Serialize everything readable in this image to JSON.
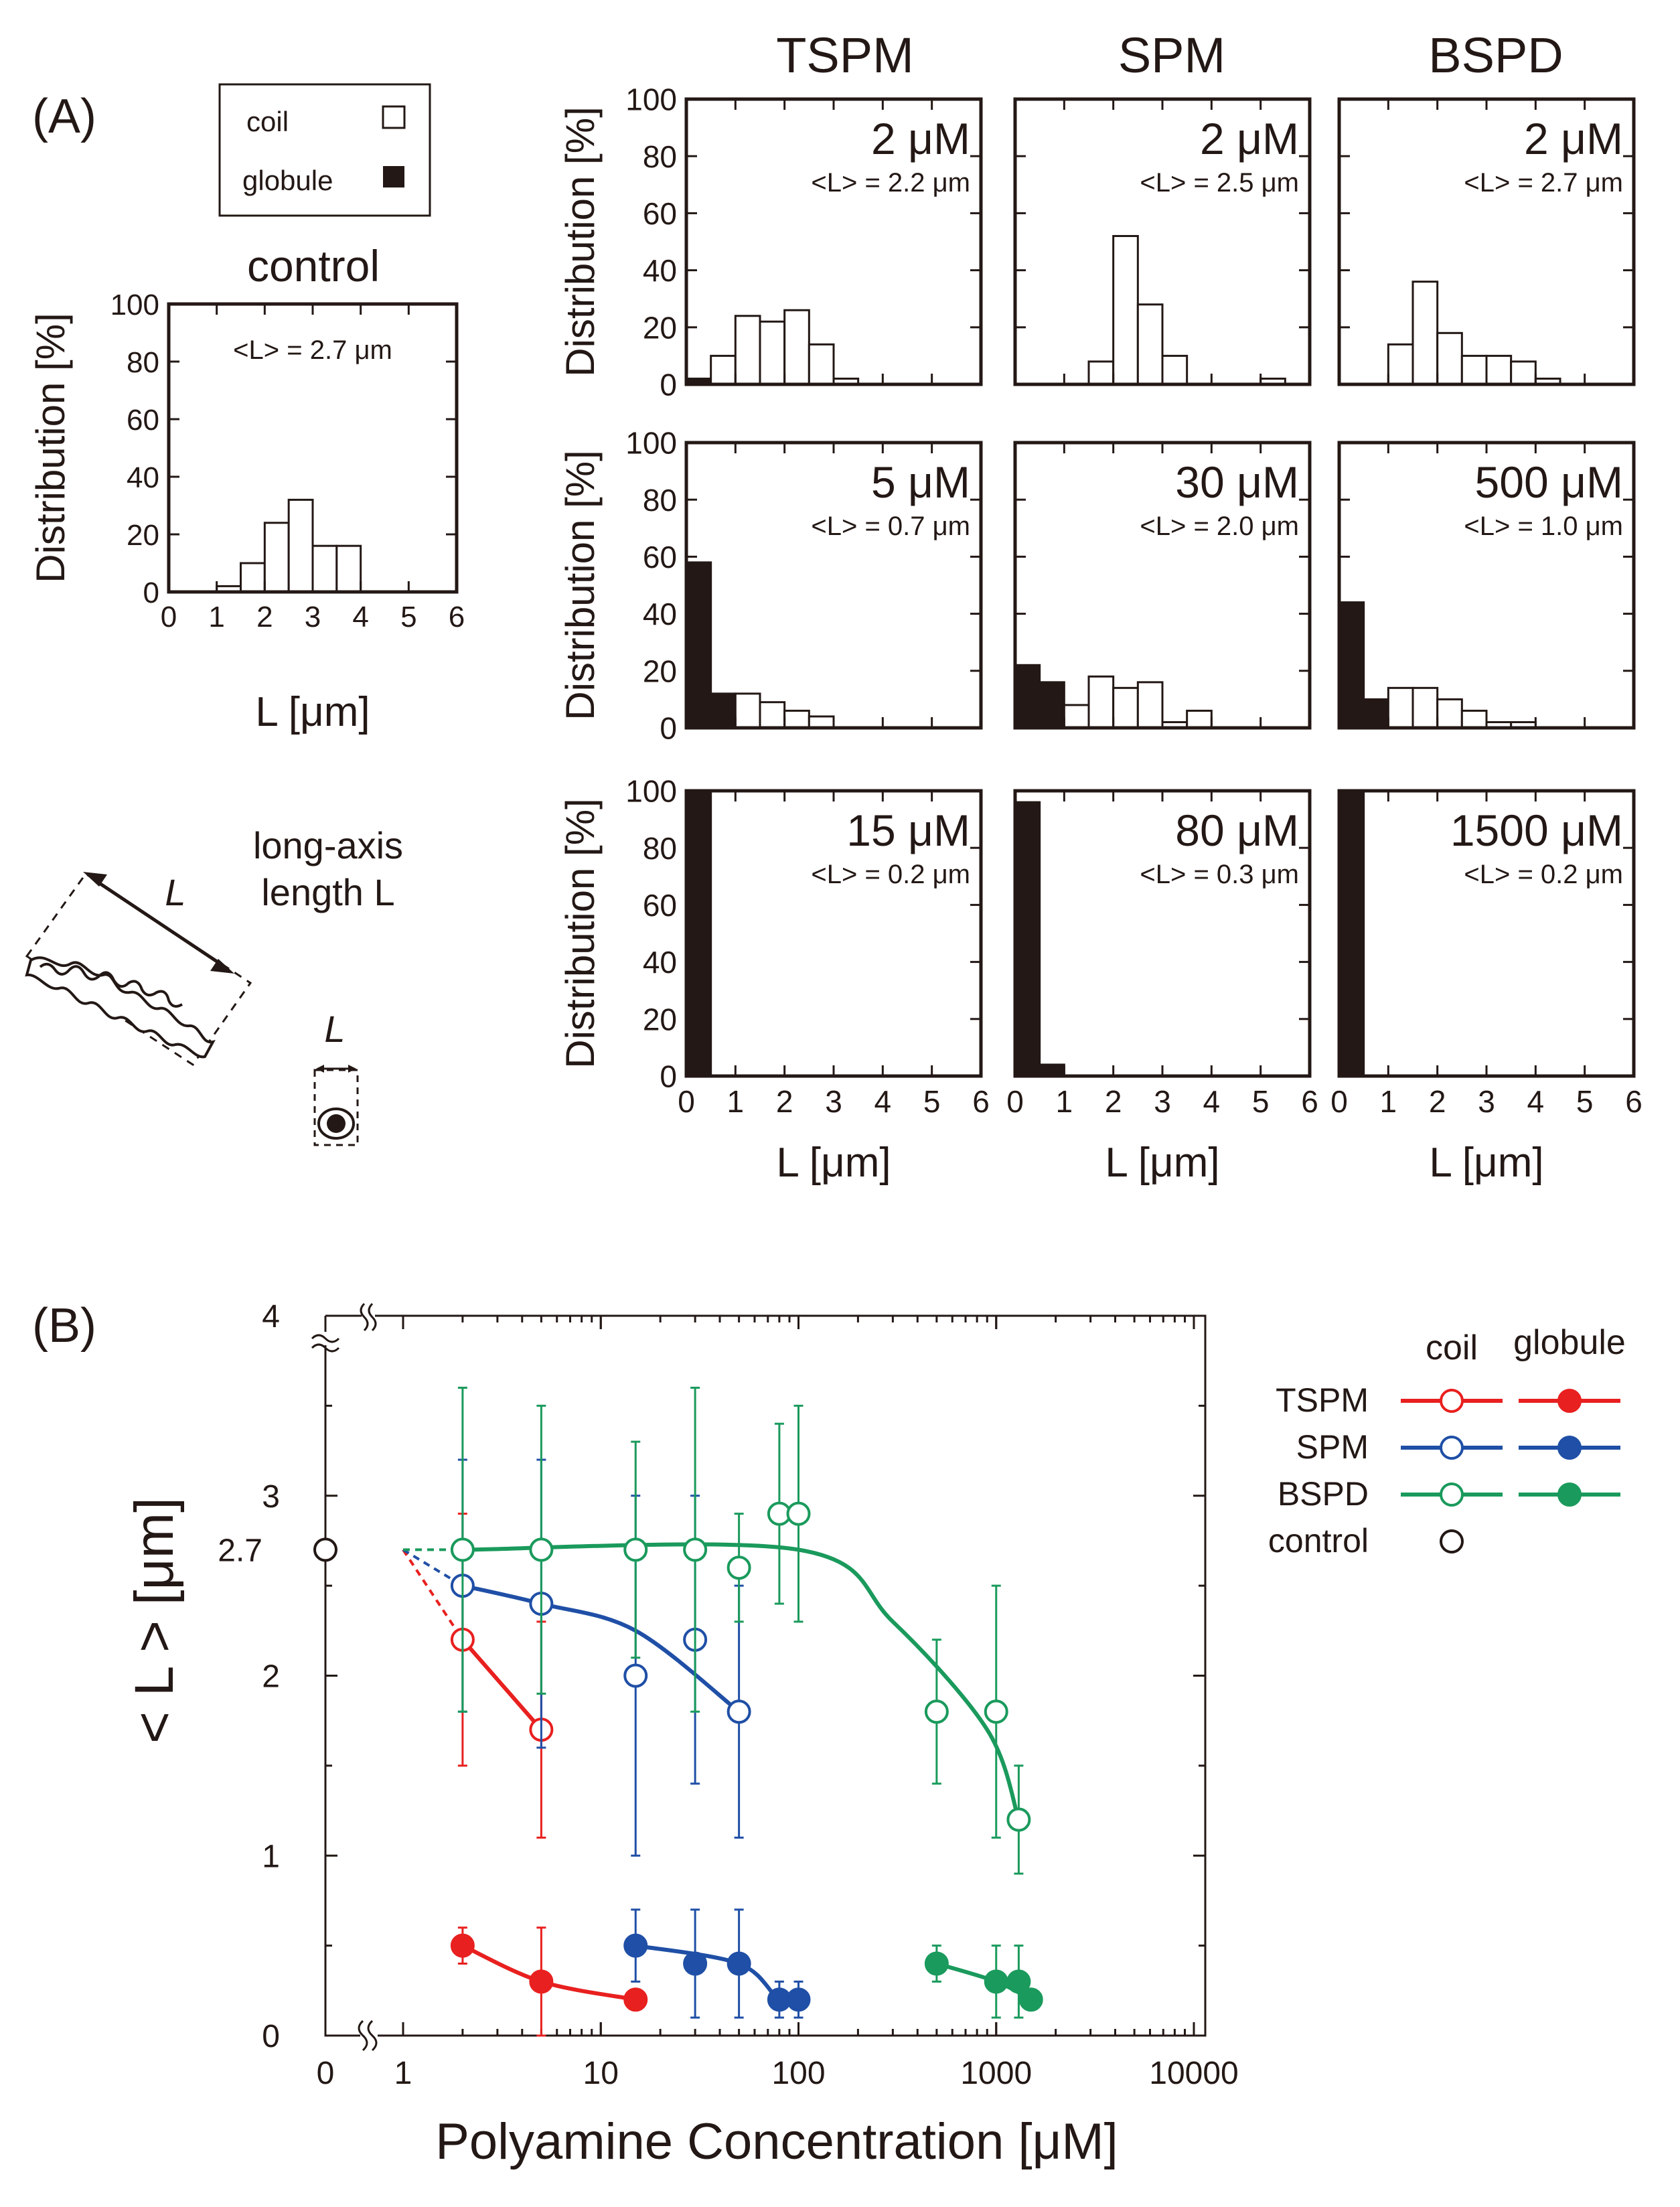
{
  "panel_a": {
    "label": "(A)",
    "legend": {
      "coil": "coil",
      "globule": "globule"
    },
    "control_title": "control",
    "control_mean": "<L> = 2.7 μm",
    "column_titles": [
      "TSPM",
      "SPM",
      "BSPD"
    ],
    "y_axis_label": "Distribution [%]",
    "x_axis_label": "L  [μm]",
    "x_ticks": [
      "0",
      "1",
      "2",
      "3",
      "4",
      "5",
      "6"
    ],
    "y_ticks": [
      "0",
      "20",
      "40",
      "60",
      "80",
      "100"
    ],
    "illustration": {
      "title_line1": "long-axis",
      "title_line2": "length L",
      "L_coil": "L",
      "L_globule": "L"
    }
  },
  "panel_b": {
    "label": "(B)",
    "y_axis_label": "< L > [μm]",
    "x_axis_label": "Polyamine Concentration [μM]",
    "y_ticks": [
      "0",
      "1",
      "2",
      "2.7",
      "3",
      "4"
    ],
    "x_ticks": [
      "0",
      "1",
      "10",
      "100",
      "1000",
      "10000"
    ],
    "legend_header": {
      "coil": "coil",
      "globule": "globule"
    },
    "legend_rows": [
      "TSPM",
      "SPM",
      "BSPD",
      "control"
    ]
  },
  "colors": {
    "TSPM": "#e8201f",
    "SPM": "#1f4fa6",
    "BSPD": "#1a9a5c",
    "ink": "#231815"
  },
  "chart_data": [
    {
      "type": "bar",
      "title": "control",
      "annotation": "<L> = 2.7 μm",
      "bin_edges_um": [
        0,
        0.5,
        1,
        1.5,
        2,
        2.5,
        3,
        3.5,
        4,
        4.5,
        5,
        5.5,
        6
      ],
      "series": [
        {
          "name": "globule",
          "values": [
            0,
            0,
            0,
            0,
            0,
            0,
            0,
            0,
            0,
            0,
            0,
            0
          ]
        },
        {
          "name": "coil",
          "values": [
            0,
            0,
            2,
            10,
            24,
            32,
            16,
            16,
            0,
            0,
            0,
            0
          ]
        }
      ],
      "xlabel": "L [μm]",
      "ylabel": "Distribution [%]",
      "xlim": [
        0,
        6
      ],
      "ylim": [
        0,
        100
      ]
    },
    {
      "type": "bar",
      "title": "TSPM 2 μM",
      "annotation": "<L> = 2.2 μm",
      "bin_edges_um": [
        0,
        0.5,
        1,
        1.5,
        2,
        2.5,
        3,
        3.5,
        4,
        4.5,
        5,
        5.5,
        6
      ],
      "series": [
        {
          "name": "globule",
          "values": [
            2,
            0,
            0,
            0,
            0,
            0,
            0,
            0,
            0,
            0,
            0,
            0
          ]
        },
        {
          "name": "coil",
          "values": [
            0,
            10,
            24,
            22,
            26,
            14,
            2,
            0,
            0,
            0,
            0,
            0
          ]
        }
      ],
      "xlabel": "L [μm]",
      "ylabel": "Distribution [%]",
      "xlim": [
        0,
        6
      ],
      "ylim": [
        0,
        100
      ]
    },
    {
      "type": "bar",
      "title": "SPM 2 μM",
      "annotation": "<L> = 2.5 μm",
      "bin_edges_um": [
        0,
        0.5,
        1,
        1.5,
        2,
        2.5,
        3,
        3.5,
        4,
        4.5,
        5,
        5.5,
        6
      ],
      "series": [
        {
          "name": "globule",
          "values": [
            0,
            0,
            0,
            0,
            0,
            0,
            0,
            0,
            0,
            0,
            0,
            0
          ]
        },
        {
          "name": "coil",
          "values": [
            0,
            0,
            0,
            8,
            52,
            28,
            10,
            0,
            0,
            0,
            2,
            0
          ]
        }
      ],
      "xlabel": "L [μm]",
      "ylabel": "Distribution [%]",
      "xlim": [
        0,
        6
      ],
      "ylim": [
        0,
        100
      ]
    },
    {
      "type": "bar",
      "title": "BSPD 2 μM",
      "annotation": "<L> = 2.7 μm",
      "bin_edges_um": [
        0,
        0.5,
        1,
        1.5,
        2,
        2.5,
        3,
        3.5,
        4,
        4.5,
        5,
        5.5,
        6
      ],
      "series": [
        {
          "name": "globule",
          "values": [
            0,
            0,
            0,
            0,
            0,
            0,
            0,
            0,
            0,
            0,
            0,
            0
          ]
        },
        {
          "name": "coil",
          "values": [
            0,
            0,
            14,
            36,
            18,
            10,
            10,
            8,
            2,
            0,
            0,
            0
          ]
        }
      ],
      "xlabel": "L [μm]",
      "ylabel": "Distribution [%]",
      "xlim": [
        0,
        6
      ],
      "ylim": [
        0,
        100
      ]
    },
    {
      "type": "bar",
      "title": "TSPM 5 μM",
      "annotation": "<L> = 0.7 μm",
      "bin_edges_um": [
        0,
        0.5,
        1,
        1.5,
        2,
        2.5,
        3,
        3.5,
        4,
        4.5,
        5,
        5.5,
        6
      ],
      "series": [
        {
          "name": "globule",
          "values": [
            58,
            12,
            0,
            0,
            0,
            0,
            0,
            0,
            0,
            0,
            0,
            0
          ]
        },
        {
          "name": "coil",
          "values": [
            0,
            0,
            12,
            9,
            6,
            4,
            0,
            0,
            0,
            0,
            0,
            0
          ]
        }
      ],
      "xlabel": "L [μm]",
      "ylabel": "Distribution [%]",
      "xlim": [
        0,
        6
      ],
      "ylim": [
        0,
        100
      ]
    },
    {
      "type": "bar",
      "title": "SPM 30 μM",
      "annotation": "<L> = 2.0 μm",
      "bin_edges_um": [
        0,
        0.5,
        1,
        1.5,
        2,
        2.5,
        3,
        3.5,
        4,
        4.5,
        5,
        5.5,
        6
      ],
      "series": [
        {
          "name": "globule",
          "values": [
            22,
            16,
            0,
            0,
            0,
            0,
            0,
            0,
            0,
            0,
            0,
            0
          ]
        },
        {
          "name": "coil",
          "values": [
            0,
            0,
            8,
            18,
            14,
            16,
            2,
            6,
            0,
            0,
            0,
            0
          ]
        }
      ],
      "xlabel": "L [μm]",
      "ylabel": "Distribution [%]",
      "xlim": [
        0,
        6
      ],
      "ylim": [
        0,
        100
      ]
    },
    {
      "type": "bar",
      "title": "BSPD 500 μM",
      "annotation": "<L> = 1.0 μm",
      "bin_edges_um": [
        0,
        0.5,
        1,
        1.5,
        2,
        2.5,
        3,
        3.5,
        4,
        4.5,
        5,
        5.5,
        6
      ],
      "series": [
        {
          "name": "globule",
          "values": [
            44,
            10,
            0,
            0,
            0,
            0,
            0,
            0,
            0,
            0,
            0,
            0
          ]
        },
        {
          "name": "coil",
          "values": [
            0,
            0,
            14,
            14,
            10,
            6,
            2,
            2,
            0,
            0,
            0,
            0
          ]
        }
      ],
      "xlabel": "L [μm]",
      "ylabel": "Distribution [%]",
      "xlim": [
        0,
        6
      ],
      "ylim": [
        0,
        100
      ]
    },
    {
      "type": "bar",
      "title": "TSPM 15 μM",
      "annotation": "<L> = 0.2 μm",
      "bin_edges_um": [
        0,
        0.5,
        1,
        1.5,
        2,
        2.5,
        3,
        3.5,
        4,
        4.5,
        5,
        5.5,
        6
      ],
      "series": [
        {
          "name": "globule",
          "values": [
            100,
            0,
            0,
            0,
            0,
            0,
            0,
            0,
            0,
            0,
            0,
            0
          ]
        },
        {
          "name": "coil",
          "values": [
            0,
            0,
            0,
            0,
            0,
            0,
            0,
            0,
            0,
            0,
            0,
            0
          ]
        }
      ],
      "xlabel": "L [μm]",
      "ylabel": "Distribution [%]",
      "xlim": [
        0,
        6
      ],
      "ylim": [
        0,
        100
      ]
    },
    {
      "type": "bar",
      "title": "SPM 80 μM",
      "annotation": "<L> = 0.3 μm",
      "bin_edges_um": [
        0,
        0.5,
        1,
        1.5,
        2,
        2.5,
        3,
        3.5,
        4,
        4.5,
        5,
        5.5,
        6
      ],
      "series": [
        {
          "name": "globule",
          "values": [
            96,
            4,
            0,
            0,
            0,
            0,
            0,
            0,
            0,
            0,
            0,
            0
          ]
        },
        {
          "name": "coil",
          "values": [
            0,
            0,
            0,
            0,
            0,
            0,
            0,
            0,
            0,
            0,
            0,
            0
          ]
        }
      ],
      "xlabel": "L [μm]",
      "ylabel": "Distribution [%]",
      "xlim": [
        0,
        6
      ],
      "ylim": [
        0,
        100
      ]
    },
    {
      "type": "bar",
      "title": "BSPD 1500 μM",
      "annotation": "<L> = 0.2 μm",
      "bin_edges_um": [
        0,
        0.5,
        1,
        1.5,
        2,
        2.5,
        3,
        3.5,
        4,
        4.5,
        5,
        5.5,
        6
      ],
      "series": [
        {
          "name": "globule",
          "values": [
            100,
            0,
            0,
            0,
            0,
            0,
            0,
            0,
            0,
            0,
            0,
            0
          ]
        },
        {
          "name": "coil",
          "values": [
            0,
            0,
            0,
            0,
            0,
            0,
            0,
            0,
            0,
            0,
            0,
            0
          ]
        }
      ],
      "xlabel": "L [μm]",
      "ylabel": "Distribution [%]",
      "xlim": [
        0,
        6
      ],
      "ylim": [
        0,
        100
      ]
    },
    {
      "type": "scatter",
      "title": "",
      "xlabel": "Polyamine Concentration [μM]",
      "ylabel": "< L > [μm]",
      "xscale": "log",
      "xlim": [
        1,
        10000
      ],
      "ylim": [
        0,
        4
      ],
      "axis_breaks": [
        "x between 0 and 1",
        "y between 3 and 4"
      ],
      "control": {
        "x": 0,
        "y": 2.7
      },
      "series": [
        {
          "name": "TSPM coil",
          "fit": "curve",
          "points": [
            {
              "x": 2,
              "y": 2.2,
              "err": 0.7
            },
            {
              "x": 5,
              "y": 1.7,
              "err": 0.6
            }
          ]
        },
        {
          "name": "SPM coil",
          "fit": "curve",
          "points": [
            {
              "x": 2,
              "y": 2.5,
              "err": 0.7
            },
            {
              "x": 5,
              "y": 2.4,
              "err": 0.8
            },
            {
              "x": 15,
              "y": 2.0,
              "err": 1.0
            },
            {
              "x": 30,
              "y": 2.2,
              "err": 0.8
            },
            {
              "x": 50,
              "y": 1.8,
              "err": 0.7
            }
          ]
        },
        {
          "name": "BSPD coil",
          "fit": "curve",
          "points": [
            {
              "x": 2,
              "y": 2.7,
              "err": 0.9
            },
            {
              "x": 5,
              "y": 2.7,
              "err": 0.8
            },
            {
              "x": 15,
              "y": 2.7,
              "err": 0.6
            },
            {
              "x": 30,
              "y": 2.7,
              "err": 0.9
            },
            {
              "x": 50,
              "y": 2.6,
              "err": 0.3
            },
            {
              "x": 80,
              "y": 2.9,
              "err": 0.5
            },
            {
              "x": 100,
              "y": 2.9,
              "err": 0.6
            },
            {
              "x": 500,
              "y": 1.8,
              "err": 0.4
            },
            {
              "x": 1000,
              "y": 1.8,
              "err": 0.7
            },
            {
              "x": 1300,
              "y": 1.2,
              "err": 0.3
            }
          ]
        },
        {
          "name": "TSPM globule",
          "fit": "curve",
          "points": [
            {
              "x": 2,
              "y": 0.5,
              "err": 0.1
            },
            {
              "x": 5,
              "y": 0.3,
              "err": 0.3
            },
            {
              "x": 15,
              "y": 0.2,
              "err": 0.05
            }
          ]
        },
        {
          "name": "SPM globule",
          "fit": "curve",
          "points": [
            {
              "x": 15,
              "y": 0.5,
              "err": 0.2
            },
            {
              "x": 30,
              "y": 0.4,
              "err": 0.3
            },
            {
              "x": 50,
              "y": 0.4,
              "err": 0.3
            },
            {
              "x": 80,
              "y": 0.2,
              "err": 0.1
            },
            {
              "x": 100,
              "y": 0.2,
              "err": 0.1
            }
          ]
        },
        {
          "name": "BSPD globule",
          "fit": "curve",
          "points": [
            {
              "x": 500,
              "y": 0.4,
              "err": 0.1
            },
            {
              "x": 1000,
              "y": 0.3,
              "err": 0.2
            },
            {
              "x": 1300,
              "y": 0.3,
              "err": 0.2
            },
            {
              "x": 1500,
              "y": 0.2,
              "err": 0.05
            }
          ]
        }
      ]
    }
  ]
}
